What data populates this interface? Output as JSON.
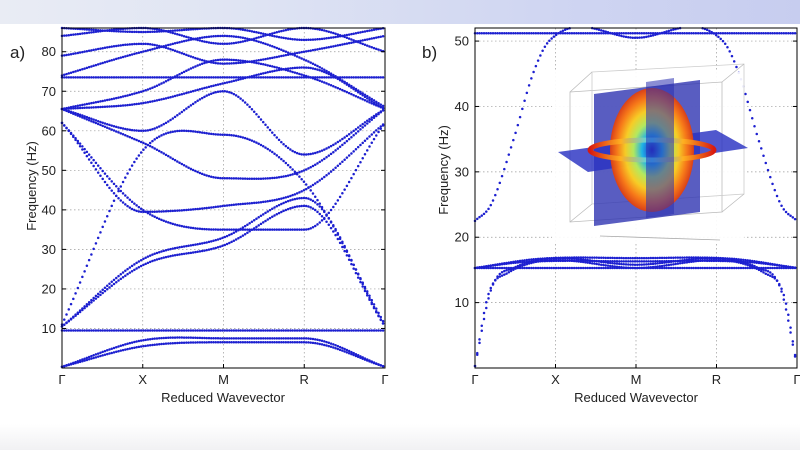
{
  "colors": {
    "points": "#1c1fd0",
    "axis": "#000000",
    "grid": "#9a9a9a"
  },
  "chart_data": [
    {
      "type": "scatter",
      "panel_label": "a)",
      "xlabel": "Reduced Wavevector",
      "ylabel": "Frequency (Hz)",
      "x_ticks": [
        "Γ",
        "X",
        "M",
        "R",
        "Γ"
      ],
      "ylim": [
        0,
        86
      ],
      "y_ticks": [
        10,
        20,
        30,
        40,
        50,
        60,
        70,
        80
      ],
      "grid": true,
      "series": [
        {
          "values": [
            [
              0,
              0.3
            ],
            [
              0.25,
              5.5
            ],
            [
              0.5,
              6.5
            ],
            [
              0.75,
              6.5
            ],
            [
              1.0,
              0.3
            ]
          ]
        },
        {
          "values": [
            [
              0,
              0.3
            ],
            [
              0.25,
              7
            ],
            [
              0.5,
              7.5
            ],
            [
              0.75,
              7.5
            ],
            [
              1.0,
              0.3
            ]
          ]
        },
        {
          "values": [
            [
              0,
              9.5
            ],
            [
              0.25,
              9.5
            ],
            [
              0.5,
              9.5
            ],
            [
              0.75,
              9.5
            ],
            [
              1.0,
              9.5
            ]
          ]
        },
        {
          "values": [
            [
              0,
              10.5
            ],
            [
              0.25,
              26
            ],
            [
              0.5,
              31
            ],
            [
              0.75,
              41
            ],
            [
              1.0,
              10.5
            ]
          ]
        },
        {
          "values": [
            [
              0,
              10.5
            ],
            [
              0.25,
              27.5
            ],
            [
              0.5,
              33
            ],
            [
              0.75,
              43
            ],
            [
              1.0,
              10.5
            ]
          ]
        },
        {
          "values": [
            [
              0,
              11
            ],
            [
              0.25,
              55
            ],
            [
              0.5,
              59
            ],
            [
              0.75,
              47
            ],
            [
              1.0,
              11
            ]
          ]
        },
        {
          "values": [
            [
              0,
              62
            ],
            [
              0.25,
              40
            ],
            [
              0.5,
              35
            ],
            [
              0.75,
              35
            ],
            [
              1.0,
              62
            ]
          ]
        },
        {
          "values": [
            [
              0,
              62
            ],
            [
              0.25,
              39.5
            ],
            [
              0.5,
              41
            ],
            [
              0.75,
              45
            ],
            [
              1.0,
              62
            ]
          ]
        },
        {
          "values": [
            [
              0,
              65.5
            ],
            [
              0.25,
              57
            ],
            [
              0.5,
              48
            ],
            [
              0.75,
              50
            ],
            [
              1.0,
              65.5
            ]
          ]
        },
        {
          "values": [
            [
              0,
              65.5
            ],
            [
              0.25,
              60
            ],
            [
              0.5,
              70
            ],
            [
              0.75,
              54
            ],
            [
              1.0,
              65.5
            ]
          ]
        },
        {
          "values": [
            [
              0,
              65.5
            ],
            [
              0.25,
              67
            ],
            [
              0.5,
              72
            ],
            [
              0.75,
              76
            ],
            [
              1.0,
              65.5
            ]
          ]
        },
        {
          "values": [
            [
              0,
              65.5
            ],
            [
              0.25,
              70
            ],
            [
              0.5,
              78
            ],
            [
              0.75,
              74
            ],
            [
              1.0,
              65.5
            ]
          ]
        },
        {
          "values": [
            [
              0,
              73.5
            ],
            [
              0.25,
              73.5
            ],
            [
              0.5,
              73.5
            ],
            [
              0.75,
              73.5
            ],
            [
              1.0,
              73.5
            ]
          ]
        },
        {
          "values": [
            [
              0,
              74
            ],
            [
              0.25,
              80
            ],
            [
              0.5,
              84
            ],
            [
              0.75,
              78
            ],
            [
              1.0,
              66
            ]
          ]
        },
        {
          "values": [
            [
              0,
              79
            ],
            [
              0.25,
              82
            ],
            [
              0.5,
              77
            ],
            [
              0.75,
              80
            ],
            [
              1.0,
              84
            ]
          ]
        },
        {
          "values": [
            [
              0,
              84
            ],
            [
              0.25,
              86
            ],
            [
              0.5,
              82
            ],
            [
              0.75,
              86
            ],
            [
              1.0,
              80
            ]
          ]
        },
        {
          "values": [
            [
              0,
              86
            ],
            [
              0.25,
              85
            ],
            [
              0.5,
              86
            ],
            [
              0.75,
              83
            ],
            [
              1.0,
              86
            ]
          ]
        }
      ]
    },
    {
      "type": "scatter",
      "panel_label": "b)",
      "xlabel": "Reduced Wavevector",
      "ylabel": "Frequency (Hz)",
      "x_ticks": [
        "Γ",
        "X",
        "M",
        "R",
        "Γ"
      ],
      "ylim": [
        0,
        52
      ],
      "y_ticks": [
        10,
        20,
        30,
        40,
        50
      ],
      "grid": true,
      "inset": "3D mode-shape image (ellipsoid resonator on intersecting planes)",
      "series": [
        {
          "values": [
            [
              0,
              0.3
            ],
            [
              0.04,
              11
            ],
            [
              0.1,
              14.5
            ],
            [
              0.5,
              15.3
            ],
            [
              0.9,
              14.5
            ],
            [
              0.96,
              11
            ],
            [
              1.0,
              0.3
            ]
          ]
        },
        {
          "values": [
            [
              0,
              0.3
            ],
            [
              0.05,
              12
            ],
            [
              0.12,
              15.3
            ],
            [
              0.5,
              15.8
            ],
            [
              0.88,
              15.3
            ],
            [
              0.95,
              12
            ],
            [
              1.0,
              0.3
            ]
          ]
        },
        {
          "values": [
            [
              0,
              15.3
            ],
            [
              0.5,
              15.3
            ],
            [
              1.0,
              15.3
            ]
          ]
        },
        {
          "values": [
            [
              0,
              15.3
            ],
            [
              0.15,
              16.2
            ],
            [
              0.5,
              16.3
            ],
            [
              0.85,
              16.2
            ],
            [
              1.0,
              15.3
            ]
          ]
        },
        {
          "values": [
            [
              0,
              15.3
            ],
            [
              0.2,
              16.7
            ],
            [
              0.5,
              16.8
            ],
            [
              0.8,
              16.7
            ],
            [
              1.0,
              15.3
            ]
          ]
        },
        {
          "values": [
            [
              0,
              22.5
            ],
            [
              0.05,
              25
            ],
            [
              0.12,
              35
            ],
            [
              0.18,
              45
            ],
            [
              0.23,
              50
            ],
            [
              0.5,
              50.5
            ],
            [
              0.77,
              50
            ],
            [
              0.82,
              45
            ],
            [
              0.88,
              35
            ],
            [
              0.95,
              25
            ],
            [
              1.0,
              22.5
            ]
          ]
        },
        {
          "values": [
            [
              0,
              51.2
            ],
            [
              0.5,
              51.2
            ],
            [
              1.0,
              51.2
            ]
          ]
        }
      ]
    }
  ]
}
